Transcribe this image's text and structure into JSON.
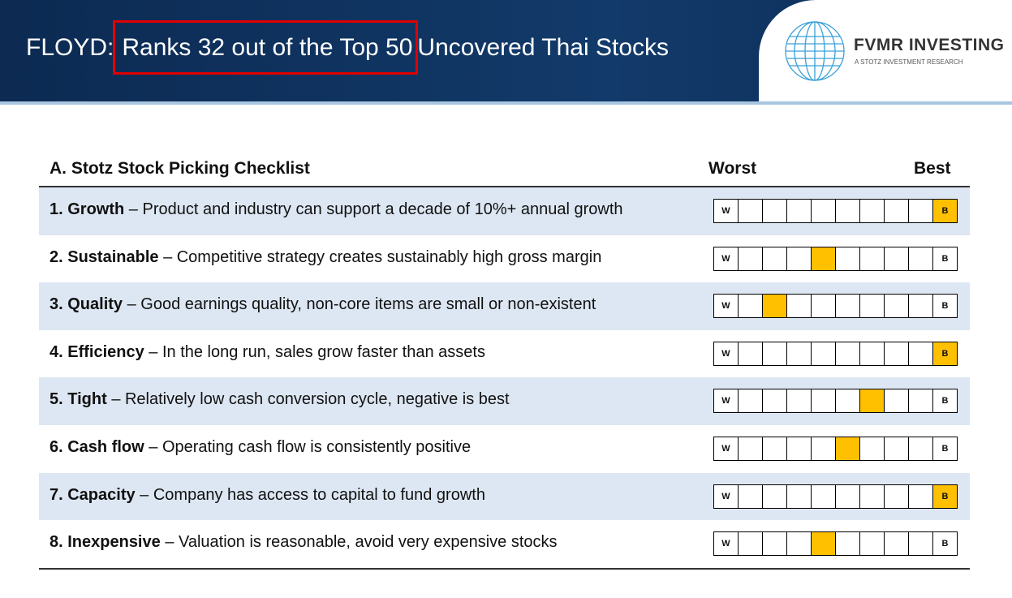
{
  "header": {
    "prefix": "FLOYD:",
    "highlight": "Ranks 32 out of the Top 50",
    "suffix": "Uncovered Thai Stocks"
  },
  "logo": {
    "name": "FVMR INVESTING",
    "tagline": "A STOTZ INVESTMENT RESEARCH"
  },
  "checklist": {
    "title": "A. Stotz Stock Picking Checklist",
    "worst": "Worst",
    "best": "Best",
    "scale": {
      "low": "W",
      "high": "B",
      "steps": 10
    },
    "rows": [
      {
        "name": "1. Growth",
        "description": "– Product and industry can support a decade of 10%+ annual growth",
        "score": 10
      },
      {
        "name": "2. Sustainable",
        "description": "– Competitive strategy creates sustainably high gross margin",
        "score": 5
      },
      {
        "name": "3. Quality",
        "description": "– Good earnings quality, non-core items are small or non-existent",
        "score": 3
      },
      {
        "name": "4. Efficiency",
        "description": "– In the long run, sales grow faster than assets",
        "score": 10
      },
      {
        "name": "5. Tight",
        "description": "– Relatively low cash conversion cycle, negative is best",
        "score": 7
      },
      {
        "name": "6. Cash flow",
        "description": "– Operating cash flow is consistently positive",
        "score": 6
      },
      {
        "name": "7. Capacity",
        "description": "– Company has access to capital to fund growth",
        "score": 10
      },
      {
        "name": "8. Inexpensive",
        "description": "– Valuation is reasonable, avoid very expensive stocks",
        "score": 5
      }
    ]
  }
}
